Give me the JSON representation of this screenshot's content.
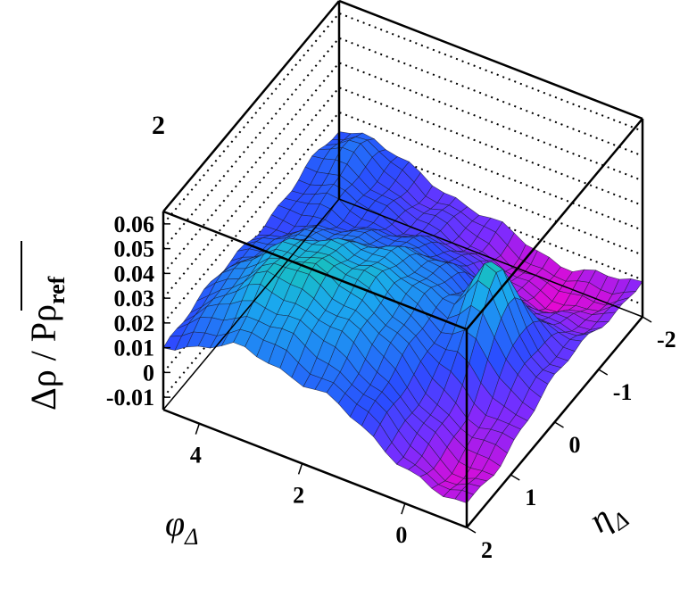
{
  "panel_label": "2",
  "chart_data": {
    "type": "surface",
    "zlabel": "Δρ / Pρ",
    "zlabel_sub": "ref",
    "xlabel": "φ",
    "xlabel_sub": "Δ",
    "ylabel": "η",
    "ylabel_sub": "Δ",
    "zlim": [
      -0.015,
      0.065
    ],
    "z_ticks": [
      "0.06",
      "0.05",
      "0.04",
      "0.03",
      "0.02",
      "0.01",
      "0",
      "-0.01"
    ],
    "phi_ticks": [
      "4",
      "2",
      "0"
    ],
    "eta_ticks": [
      "-2",
      "-1",
      "0",
      "1",
      "2"
    ],
    "phi_range": [
      -1.2,
      4.7
    ],
    "eta_range": [
      -2.0,
      2.0
    ],
    "grid": "dotted back walls",
    "colors": {
      "low": "#ff00c8",
      "mid_low": "#7a2cff",
      "mid": "#2a4dff",
      "mid_high": "#1aa8ee",
      "high": "#11ff44"
    }
  }
}
